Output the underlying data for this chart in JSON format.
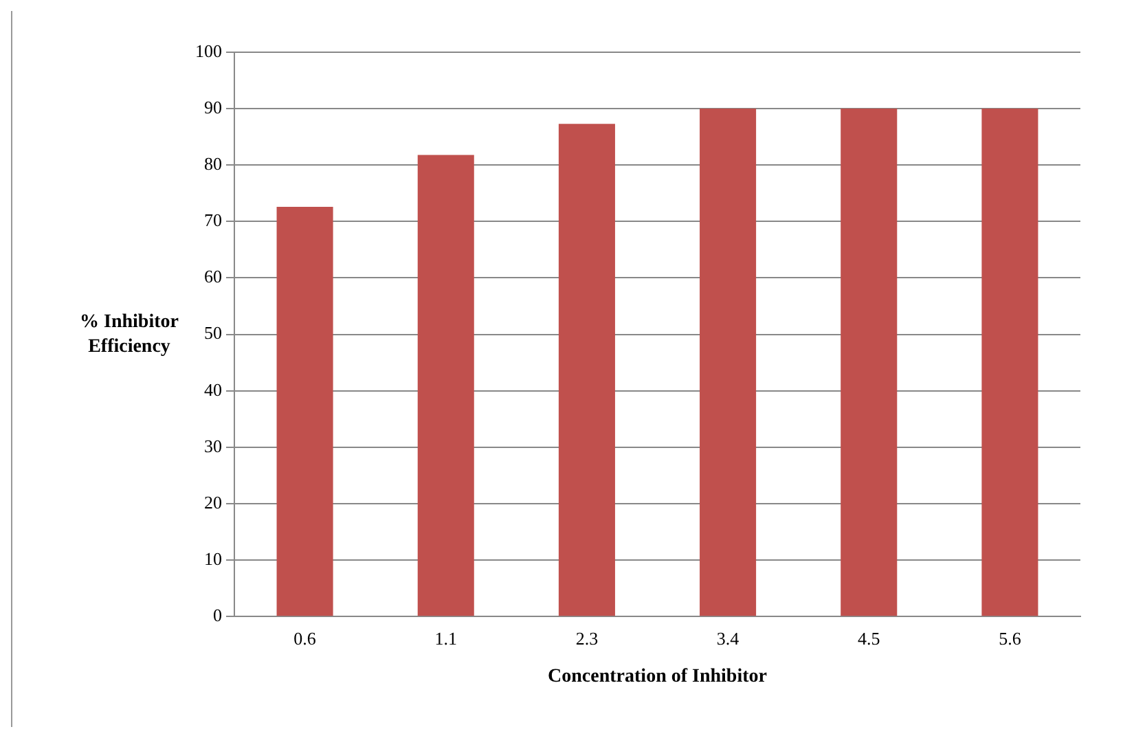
{
  "chart_data": {
    "type": "bar",
    "xlabel": "Concentration of Inhibitor",
    "ylabel": "% Inhibitor Efficiency",
    "categories": [
      "0.6",
      "1.1",
      "2.3",
      "3.4",
      "4.5",
      "5.6"
    ],
    "values": [
      72.6,
      81.8,
      87.3,
      90,
      90,
      90
    ],
    "color": "#c0504d",
    "ylim": [
      0,
      100
    ],
    "yticks": [
      0,
      10,
      20,
      30,
      40,
      50,
      60,
      70,
      80,
      90,
      100
    ],
    "grid": "y",
    "legend": false
  }
}
